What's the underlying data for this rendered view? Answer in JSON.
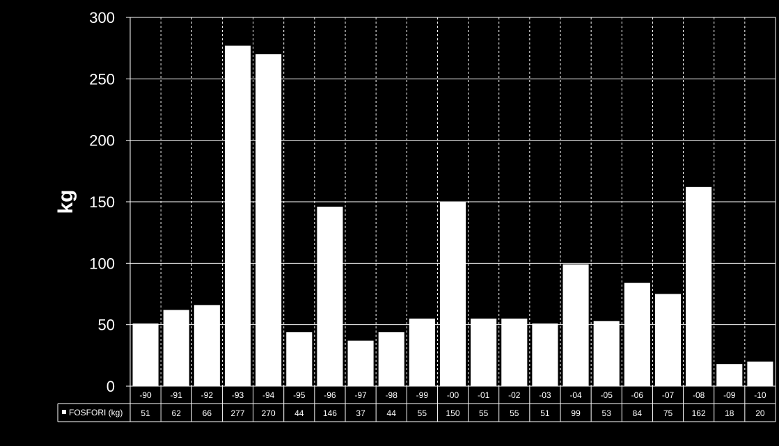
{
  "chart_data": {
    "type": "bar",
    "ylabel": "kg",
    "ylim": [
      0,
      300
    ],
    "yticks": [
      0,
      50,
      100,
      150,
      200,
      250,
      300
    ],
    "grid": true,
    "categories": [
      "-90",
      "-91",
      "-92",
      "-93",
      "-94",
      "-95",
      "-96",
      "-97",
      "-98",
      "-99",
      "-00",
      "-01",
      "-02",
      "-03",
      "-04",
      "-05",
      "-06",
      "-07",
      "-08",
      "-09",
      "-10"
    ],
    "series": [
      {
        "name": "FOSFORI (kg)",
        "values": [
          51,
          62,
          66,
          277,
          270,
          44,
          146,
          37,
          44,
          55,
          150,
          55,
          55,
          51,
          99,
          53,
          84,
          75,
          162,
          18,
          20
        ]
      }
    ],
    "data_table": true,
    "colors": {
      "background": "#000000",
      "bar": "#ffffff",
      "grid": "#ffffff",
      "text": "#ffffff"
    }
  }
}
